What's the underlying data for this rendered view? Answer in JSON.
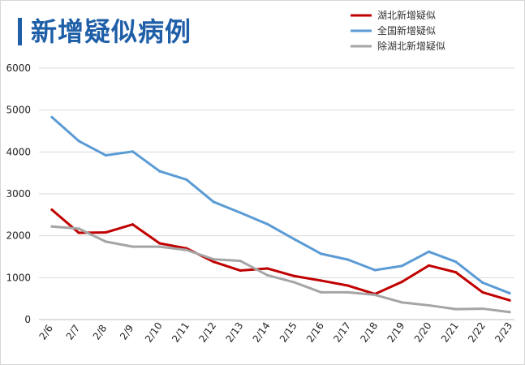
{
  "title": "新增疑似病例",
  "chart_data": {
    "type": "line",
    "title": "新增疑似病例",
    "xlabel": "",
    "ylabel": "",
    "ylim": [
      0,
      6000
    ],
    "yticks": [
      0,
      1000,
      2000,
      3000,
      4000,
      5000,
      6000
    ],
    "grid": true,
    "legend_position": "top-right",
    "categories": [
      "2/6",
      "2/7",
      "2/8",
      "2/9",
      "2/10",
      "2/11",
      "2/12",
      "2/13",
      "2/14",
      "2/15",
      "2/16",
      "2/17",
      "2/18",
      "2/19",
      "2/20",
      "2/21",
      "2/22",
      "2/23"
    ],
    "series": [
      {
        "name": "湖北新增疑似",
        "color": "#c00000",
        "values": [
          2620,
          2070,
          2080,
          2270,
          1820,
          1700,
          1380,
          1170,
          1220,
          1040,
          930,
          810,
          610,
          900,
          1290,
          1130,
          650,
          460
        ]
      },
      {
        "name": "全国新增疑似",
        "color": "#5b9bd5",
        "values": [
          4830,
          4260,
          3920,
          4010,
          3540,
          3340,
          2810,
          2550,
          2280,
          1920,
          1570,
          1430,
          1180,
          1280,
          1620,
          1380,
          880,
          630
        ]
      },
      {
        "name": "除湖北新增疑似",
        "color": "#a5a5a5",
        "values": [
          2220,
          2170,
          1860,
          1740,
          1740,
          1660,
          1440,
          1400,
          1060,
          890,
          650,
          650,
          590,
          410,
          340,
          250,
          260,
          180
        ]
      }
    ]
  }
}
